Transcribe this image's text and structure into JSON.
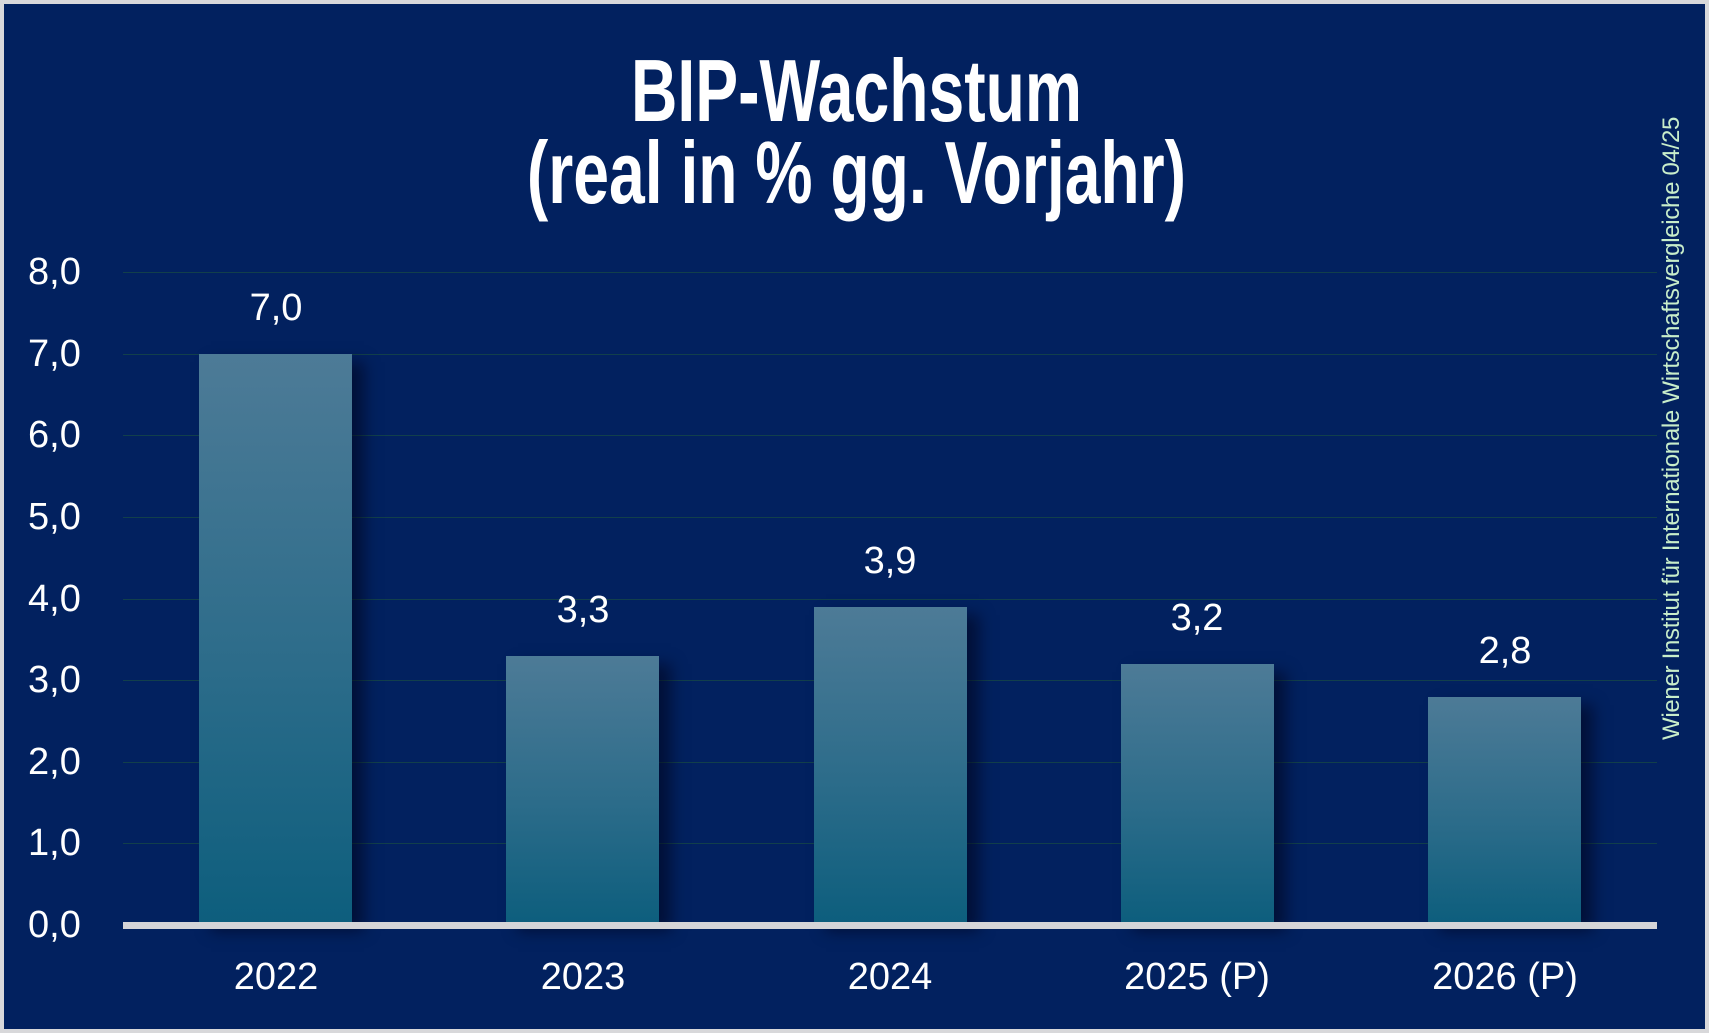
{
  "title": {
    "line1": "BIP-Wachstum",
    "line2": "(real in % gg. Vorjahr)"
  },
  "source_note": "Wiener Institut für Internationale Wirtschaftsvergleiche 04/25",
  "chart_data": {
    "type": "bar",
    "title": "BIP-Wachstum (real in % gg. Vorjahr)",
    "categories": [
      "2022",
      "2023",
      "2024",
      "2025 (P)",
      "2026 (P)"
    ],
    "values": [
      7.0,
      3.3,
      3.9,
      3.2,
      2.8
    ],
    "value_labels": [
      "7,0",
      "3,3",
      "3,9",
      "3,2",
      "2,8"
    ],
    "y_ticks": [
      0,
      1,
      2,
      3,
      4,
      5,
      6,
      7,
      8
    ],
    "y_tick_labels": [
      "0,0",
      "1,0",
      "2,0",
      "3,0",
      "4,0",
      "5,0",
      "6,0",
      "7,0",
      "8,0"
    ],
    "ylim": [
      0,
      8
    ],
    "grid": true,
    "legend": "none",
    "xlabel": "",
    "ylabel": "",
    "colors": {
      "background": "#02215f",
      "frame_border": "#d8d8da",
      "bar_gradient_top": "#4d7b97",
      "bar_gradient_mid": "#2c6c8a",
      "bar_gradient_bottom": "#0d5e7d",
      "axis_line": "#d5d5d8",
      "gridline": "#123f4b",
      "label_text": "#ffffff",
      "source_text": "#c8edca"
    }
  }
}
